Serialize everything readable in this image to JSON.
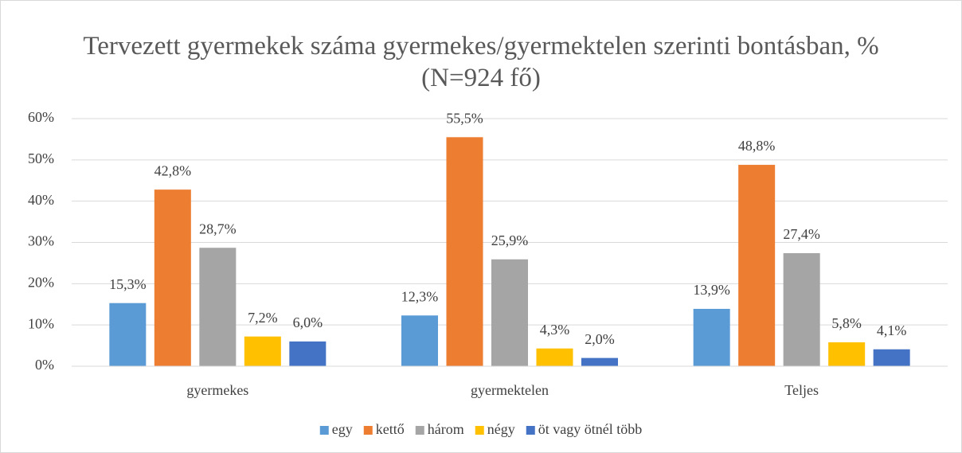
{
  "chart_data": {
    "type": "bar",
    "title": "Tervezett gyermekek száma gyermekes/gyermektelen szerinti bontásban, % (N=924 fő)",
    "categories": [
      "gyermekes",
      "gyermektelen",
      "Teljes"
    ],
    "series": [
      {
        "name": "egy",
        "color": "#5b9bd5",
        "values": [
          15.3,
          12.3,
          13.9
        ],
        "value_labels": [
          "15,3%",
          "12,3%",
          "13,9%"
        ]
      },
      {
        "name": "kettő",
        "color": "#ed7d31",
        "values": [
          42.8,
          55.5,
          48.8
        ],
        "value_labels": [
          "42,8%",
          "55,5%",
          "48,8%"
        ]
      },
      {
        "name": "három",
        "color": "#a5a5a5",
        "values": [
          28.7,
          25.9,
          27.4
        ],
        "value_labels": [
          "28,7%",
          "25,9%",
          "27,4%"
        ]
      },
      {
        "name": "négy",
        "color": "#ffc000",
        "values": [
          7.2,
          4.3,
          5.8
        ],
        "value_labels": [
          "7,2%",
          "4,3%",
          "5,8%"
        ]
      },
      {
        "name": "öt vagy ötnél több",
        "color": "#4472c4",
        "values": [
          6.0,
          2.0,
          4.1
        ],
        "value_labels": [
          "6,0%",
          "2,0%",
          "4,1%"
        ]
      }
    ],
    "ylim": [
      0,
      60
    ],
    "yticks": [
      {
        "value": 0,
        "label": "0%"
      },
      {
        "value": 10,
        "label": "10%"
      },
      {
        "value": 20,
        "label": "20%"
      },
      {
        "value": 30,
        "label": "30%"
      },
      {
        "value": 40,
        "label": "40%"
      },
      {
        "value": 50,
        "label": "50%"
      },
      {
        "value": 60,
        "label": "60%"
      }
    ],
    "grid": true,
    "legend": "bottom"
  }
}
